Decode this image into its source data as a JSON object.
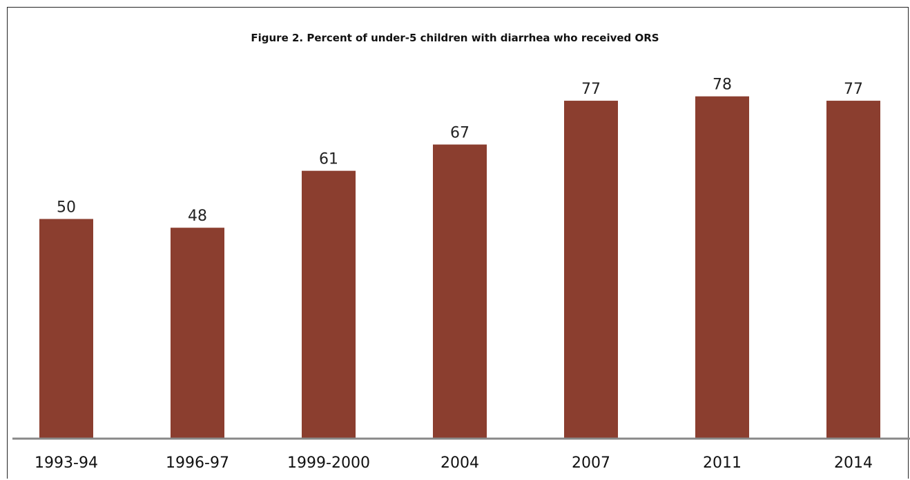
{
  "chart_data": {
    "type": "bar",
    "title": "Figure 2. Percent of under-5 children with diarrhea who received ORS",
    "xlabel": "",
    "ylabel": "",
    "categories": [
      "1993-94",
      "1996-97",
      "1999-2000",
      "2004",
      "2007",
      "2011",
      "2014"
    ],
    "values": [
      50,
      48,
      61,
      67,
      77,
      78,
      77
    ],
    "ylim": [
      0,
      100
    ],
    "grid": false,
    "legend": "none",
    "colors": {
      "bar": "#8b3e2f",
      "axis": "#888888"
    }
  }
}
